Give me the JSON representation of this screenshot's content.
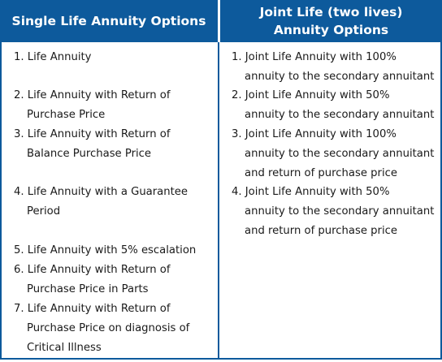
{
  "headers": {
    "left": "Single Life Annuity Options",
    "right_line1": "Joint Life (two lives)",
    "right_line2": "Annuity Options"
  },
  "single_life": [
    {
      "lines": [
        "1. Life Annuity"
      ]
    },
    {
      "lines": [
        "2. Life Annuity with Return of",
        "Purchase Price"
      ]
    },
    {
      "lines": [
        "3. Life Annuity with Return of",
        "Balance Purchase Price"
      ]
    },
    {
      "lines": [
        "4. Life Annuity with a Guarantee",
        "Period"
      ]
    },
    {
      "lines": [
        "5. Life Annuity with 5% escalation"
      ]
    },
    {
      "lines": [
        "6. Life Annuity with Return of",
        "Purchase Price in Parts"
      ]
    },
    {
      "lines": [
        "7. Life Annuity with Return of",
        "Purchase Price on diagnosis of",
        "Critical Illness"
      ]
    }
  ],
  "joint_life": [
    {
      "lines": [
        "1.  Joint Life Annuity with 100%",
        "annuity to the secondary annuitant"
      ]
    },
    {
      "lines": [
        "2.  Joint Life Annuity with 50%",
        "annuity to the secondary annuitant"
      ]
    },
    {
      "lines": [
        "3.  Joint Life Annuity with 100%",
        "annuity to the secondary annuitant",
        "and return of purchase price"
      ]
    },
    {
      "lines": [
        "4.  Joint Life Annuity with 50%",
        "annuity to the secondary annuitant",
        "and return of purchase price"
      ]
    }
  ],
  "colors": {
    "header_bg": "#0d5a9c",
    "header_text": "#ffffff",
    "border": "#0d5a9c"
  }
}
